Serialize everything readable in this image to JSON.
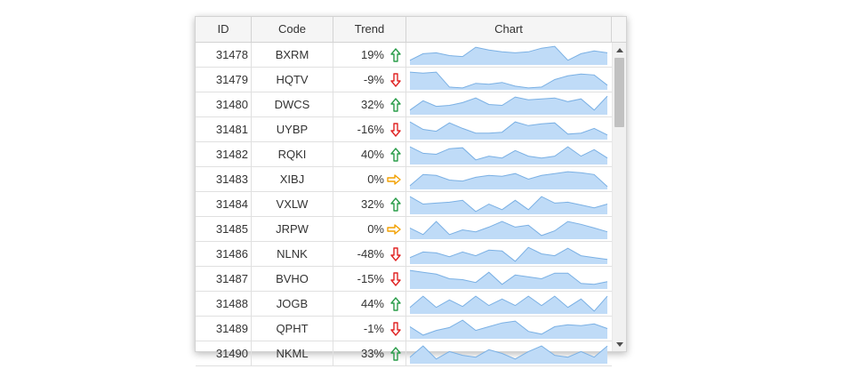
{
  "grid": {
    "columns": [
      "ID",
      "Code",
      "Trend",
      "Chart"
    ],
    "rows": [
      {
        "id": "31478",
        "code": "BXRM",
        "trend": "19%",
        "dir": "up",
        "spark": [
          0.2,
          0.55,
          0.6,
          0.45,
          0.4,
          0.9,
          0.75,
          0.65,
          0.6,
          0.65,
          0.85,
          0.95,
          0.2,
          0.55,
          0.7,
          0.6
        ]
      },
      {
        "id": "31479",
        "code": "HQTV",
        "trend": "-9%",
        "dir": "down",
        "spark": [
          0.9,
          0.85,
          0.9,
          0.1,
          0.05,
          0.3,
          0.25,
          0.35,
          0.15,
          0.05,
          0.1,
          0.5,
          0.7,
          0.8,
          0.75,
          0.2
        ]
      },
      {
        "id": "31480",
        "code": "DWCS",
        "trend": "32%",
        "dir": "up",
        "spark": [
          0.2,
          0.7,
          0.4,
          0.45,
          0.6,
          0.85,
          0.5,
          0.45,
          0.9,
          0.75,
          0.8,
          0.85,
          0.65,
          0.8,
          0.2,
          0.95
        ]
      },
      {
        "id": "31481",
        "code": "UYBP",
        "trend": "-16%",
        "dir": "down",
        "spark": [
          0.9,
          0.5,
          0.4,
          0.85,
          0.55,
          0.3,
          0.3,
          0.35,
          0.9,
          0.7,
          0.8,
          0.85,
          0.25,
          0.3,
          0.55,
          0.2
        ]
      },
      {
        "id": "31482",
        "code": "RQKI",
        "trend": "40%",
        "dir": "up",
        "spark": [
          0.9,
          0.55,
          0.5,
          0.8,
          0.85,
          0.2,
          0.4,
          0.3,
          0.7,
          0.4,
          0.3,
          0.4,
          0.9,
          0.4,
          0.75,
          0.3
        ]
      },
      {
        "id": "31483",
        "code": "XIBJ",
        "trend": "0%",
        "dir": "flat",
        "spark": [
          0.15,
          0.75,
          0.7,
          0.45,
          0.4,
          0.6,
          0.7,
          0.65,
          0.8,
          0.5,
          0.7,
          0.8,
          0.9,
          0.85,
          0.75,
          0.1
        ]
      },
      {
        "id": "31484",
        "code": "VXLW",
        "trend": "32%",
        "dir": "up",
        "spark": [
          0.9,
          0.5,
          0.55,
          0.6,
          0.7,
          0.1,
          0.5,
          0.2,
          0.7,
          0.2,
          0.9,
          0.55,
          0.6,
          0.45,
          0.3,
          0.5
        ]
      },
      {
        "id": "31485",
        "code": "JRPW",
        "trend": "0%",
        "dir": "flat",
        "spark": [
          0.55,
          0.2,
          0.9,
          0.2,
          0.45,
          0.35,
          0.6,
          0.9,
          0.6,
          0.7,
          0.15,
          0.4,
          0.9,
          0.75,
          0.55,
          0.35
        ]
      },
      {
        "id": "31486",
        "code": "NLNK",
        "trend": "-48%",
        "dir": "down",
        "spark": [
          0.3,
          0.6,
          0.55,
          0.35,
          0.6,
          0.4,
          0.7,
          0.65,
          0.1,
          0.85,
          0.5,
          0.4,
          0.8,
          0.4,
          0.3,
          0.2
        ]
      },
      {
        "id": "31487",
        "code": "BVHO",
        "trend": "-15%",
        "dir": "down",
        "spark": [
          0.95,
          0.85,
          0.75,
          0.5,
          0.45,
          0.3,
          0.85,
          0.2,
          0.7,
          0.6,
          0.5,
          0.8,
          0.8,
          0.25,
          0.2,
          0.35
        ]
      },
      {
        "id": "31488",
        "code": "JOGB",
        "trend": "44%",
        "dir": "up",
        "spark": [
          0.3,
          0.9,
          0.3,
          0.7,
          0.35,
          0.9,
          0.4,
          0.75,
          0.4,
          0.9,
          0.4,
          0.9,
          0.3,
          0.75,
          0.1,
          0.9
        ]
      },
      {
        "id": "31489",
        "code": "QPHT",
        "trend": "-1%",
        "dir": "down",
        "spark": [
          0.6,
          0.15,
          0.4,
          0.55,
          0.95,
          0.4,
          0.6,
          0.8,
          0.9,
          0.35,
          0.2,
          0.6,
          0.7,
          0.65,
          0.75,
          0.5
        ]
      },
      {
        "id": "31490",
        "code": "NKML",
        "trend": "33%",
        "dir": "up",
        "spark": [
          0.3,
          0.9,
          0.2,
          0.6,
          0.4,
          0.3,
          0.7,
          0.5,
          0.2,
          0.6,
          0.9,
          0.4,
          0.3,
          0.6,
          0.3,
          0.9
        ]
      }
    ]
  },
  "colors": {
    "spark_fill": "#bfdbf7",
    "spark_stroke": "#7ab0e4",
    "up": "#2a9d4a",
    "down": "#e02424",
    "flat": "#f2a000"
  },
  "icons": {
    "up": "arrow-up-icon",
    "down": "arrow-down-icon",
    "flat": "arrow-right-icon"
  }
}
